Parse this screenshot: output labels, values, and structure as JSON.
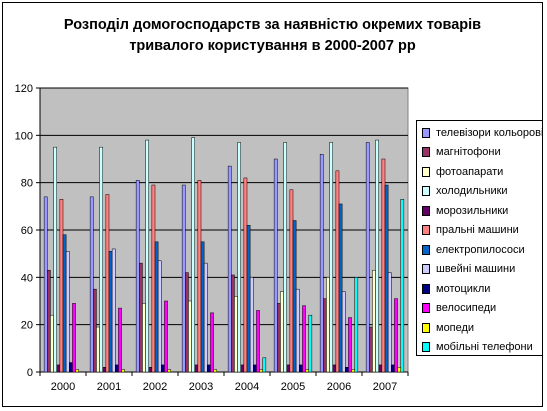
{
  "chart_data": {
    "type": "bar",
    "title": "Розподіл домогосподарств за наявністю окремих товарів\nтривалого користування в 2000-2007 рр",
    "categories": [
      "2000",
      "2001",
      "2002",
      "2003",
      "2004",
      "2005",
      "2006",
      "2007"
    ],
    "ylim": [
      0,
      120
    ],
    "yticks": [
      0,
      20,
      40,
      60,
      80,
      100,
      120
    ],
    "grid": true,
    "legend_position": "right",
    "plot_background": "#c0c0c0",
    "series": [
      {
        "name": "телевізори кольорові",
        "color": "#9999ff",
        "values": [
          74,
          74,
          81,
          79,
          87,
          90,
          92,
          97
        ]
      },
      {
        "name": "магнітофони",
        "color": "#993366",
        "values": [
          43,
          35,
          46,
          42,
          41,
          29,
          31,
          19
        ]
      },
      {
        "name": "фотоапарати",
        "color": "#ffffcc",
        "values": [
          24,
          19,
          29,
          30,
          32,
          34,
          40,
          43
        ]
      },
      {
        "name": "холодильники",
        "color": "#ccffff",
        "values": [
          95,
          95,
          98,
          99,
          97,
          97,
          97,
          98
        ]
      },
      {
        "name": "морозильники",
        "color": "#660066",
        "values": [
          3,
          2,
          2,
          3,
          3,
          3,
          3,
          3
        ]
      },
      {
        "name": "пральні машини",
        "color": "#ff8080",
        "values": [
          73,
          75,
          79,
          81,
          82,
          77,
          85,
          90
        ]
      },
      {
        "name": "електропилососи",
        "color": "#0066cc",
        "values": [
          58,
          51,
          55,
          55,
          62,
          64,
          71,
          79
        ]
      },
      {
        "name": "швейні машини",
        "color": "#ccccff",
        "values": [
          51,
          52,
          47,
          46,
          40,
          35,
          34,
          42
        ]
      },
      {
        "name": "мотоцикли",
        "color": "#000080",
        "values": [
          4,
          3,
          3,
          3,
          3,
          3,
          2,
          3
        ]
      },
      {
        "name": "велосипеди",
        "color": "#ff00ff",
        "values": [
          29,
          27,
          30,
          25,
          26,
          28,
          23,
          31
        ]
      },
      {
        "name": "мопеди",
        "color": "#ffff00",
        "values": [
          1,
          1,
          1,
          1,
          1,
          1,
          1,
          2
        ]
      },
      {
        "name": "мобільні телефони",
        "color": "#00ffff",
        "values": [
          0,
          0,
          0,
          0,
          6,
          24,
          40,
          73
        ]
      }
    ]
  }
}
